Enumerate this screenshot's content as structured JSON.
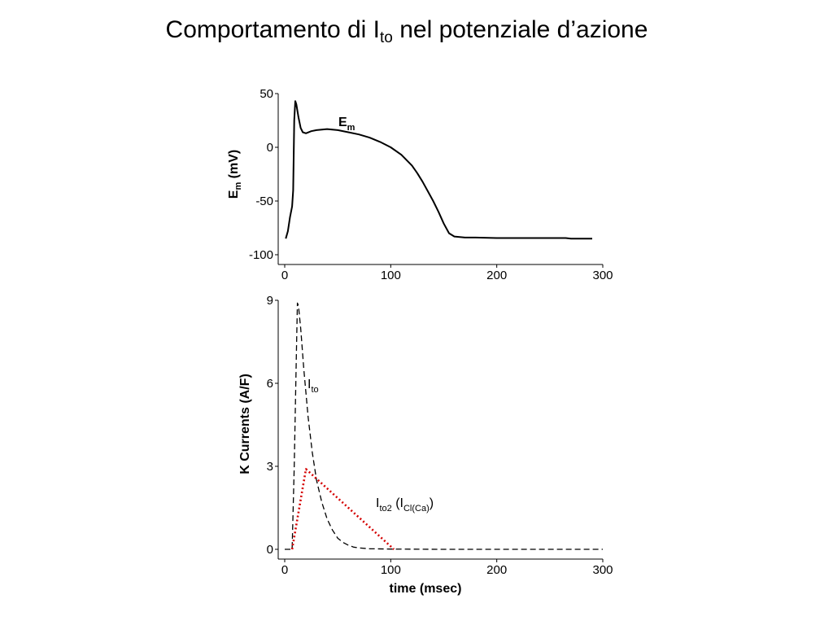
{
  "slide": {
    "title_main": "Comportamento di I",
    "title_sub": "to",
    "title_rest": " nel potenziale d’azione"
  },
  "colors": {
    "line": "#000000",
    "ito2": "#d40000"
  },
  "chart_data": [
    {
      "type": "line",
      "title": "",
      "ylabel": "Em (mV)",
      "ylabel_main": "E",
      "ylabel_sub": "m",
      "ylabel_rest": " (mV)",
      "xlabel": "",
      "xlim": [
        0,
        300
      ],
      "ylim": [
        -100,
        50
      ],
      "xticks": [
        0,
        100,
        200,
        300
      ],
      "yticks": [
        50,
        0,
        -50,
        -100
      ],
      "grid": false,
      "series": [
        {
          "name": "Em",
          "label_main": "E",
          "label_sub": "m",
          "style": "solid",
          "x": [
            1,
            3,
            5,
            7,
            8,
            9,
            10,
            11,
            13,
            15,
            17,
            20,
            25,
            30,
            40,
            50,
            60,
            70,
            80,
            90,
            100,
            110,
            120,
            125,
            130,
            135,
            140,
            145,
            150,
            155,
            160,
            170,
            180,
            200,
            230,
            265,
            270,
            290
          ],
          "y": [
            -85,
            -78,
            -65,
            -55,
            -40,
            25,
            43,
            40,
            28,
            18,
            14,
            13,
            15,
            16,
            17,
            16,
            14,
            12,
            9,
            5,
            0,
            -7,
            -17,
            -24,
            -32,
            -41,
            -50,
            -60,
            -71,
            -80,
            -83,
            -84,
            -84,
            -84.5,
            -84.5,
            -84.5,
            -85,
            -85
          ]
        }
      ]
    },
    {
      "type": "line",
      "title": "",
      "ylabel": "K Currents (A/F)",
      "xlabel": "time (msec)",
      "xlim": [
        0,
        300
      ],
      "ylim": [
        0,
        9
      ],
      "xticks": [
        0,
        100,
        200,
        300
      ],
      "yticks": [
        9,
        6,
        3,
        0
      ],
      "grid": false,
      "series": [
        {
          "name": "Ito",
          "label_main": "I",
          "label_sub": "to",
          "style": "dashed",
          "x": [
            0,
            7,
            9,
            11,
            12,
            13,
            15,
            18,
            22,
            26,
            30,
            35,
            40,
            45,
            50,
            55,
            60,
            65,
            70,
            80,
            100,
            150,
            200,
            300
          ],
          "y": [
            0,
            0,
            3,
            7,
            8.9,
            8.8,
            8,
            6.5,
            4.8,
            3.5,
            2.5,
            1.7,
            1.1,
            0.7,
            0.4,
            0.25,
            0.15,
            0.08,
            0.05,
            0.02,
            0.01,
            0,
            0,
            0
          ]
        },
        {
          "name": "Ito2 (ICl(Ca))",
          "label_main": "I",
          "label_sub": "to2",
          "label_mid": " (I",
          "label_sub2": "Cl(Ca)",
          "label_end": ")",
          "style": "dotted",
          "x": [
            7,
            20,
            103
          ],
          "y": [
            0,
            2.9,
            0
          ]
        }
      ]
    }
  ]
}
